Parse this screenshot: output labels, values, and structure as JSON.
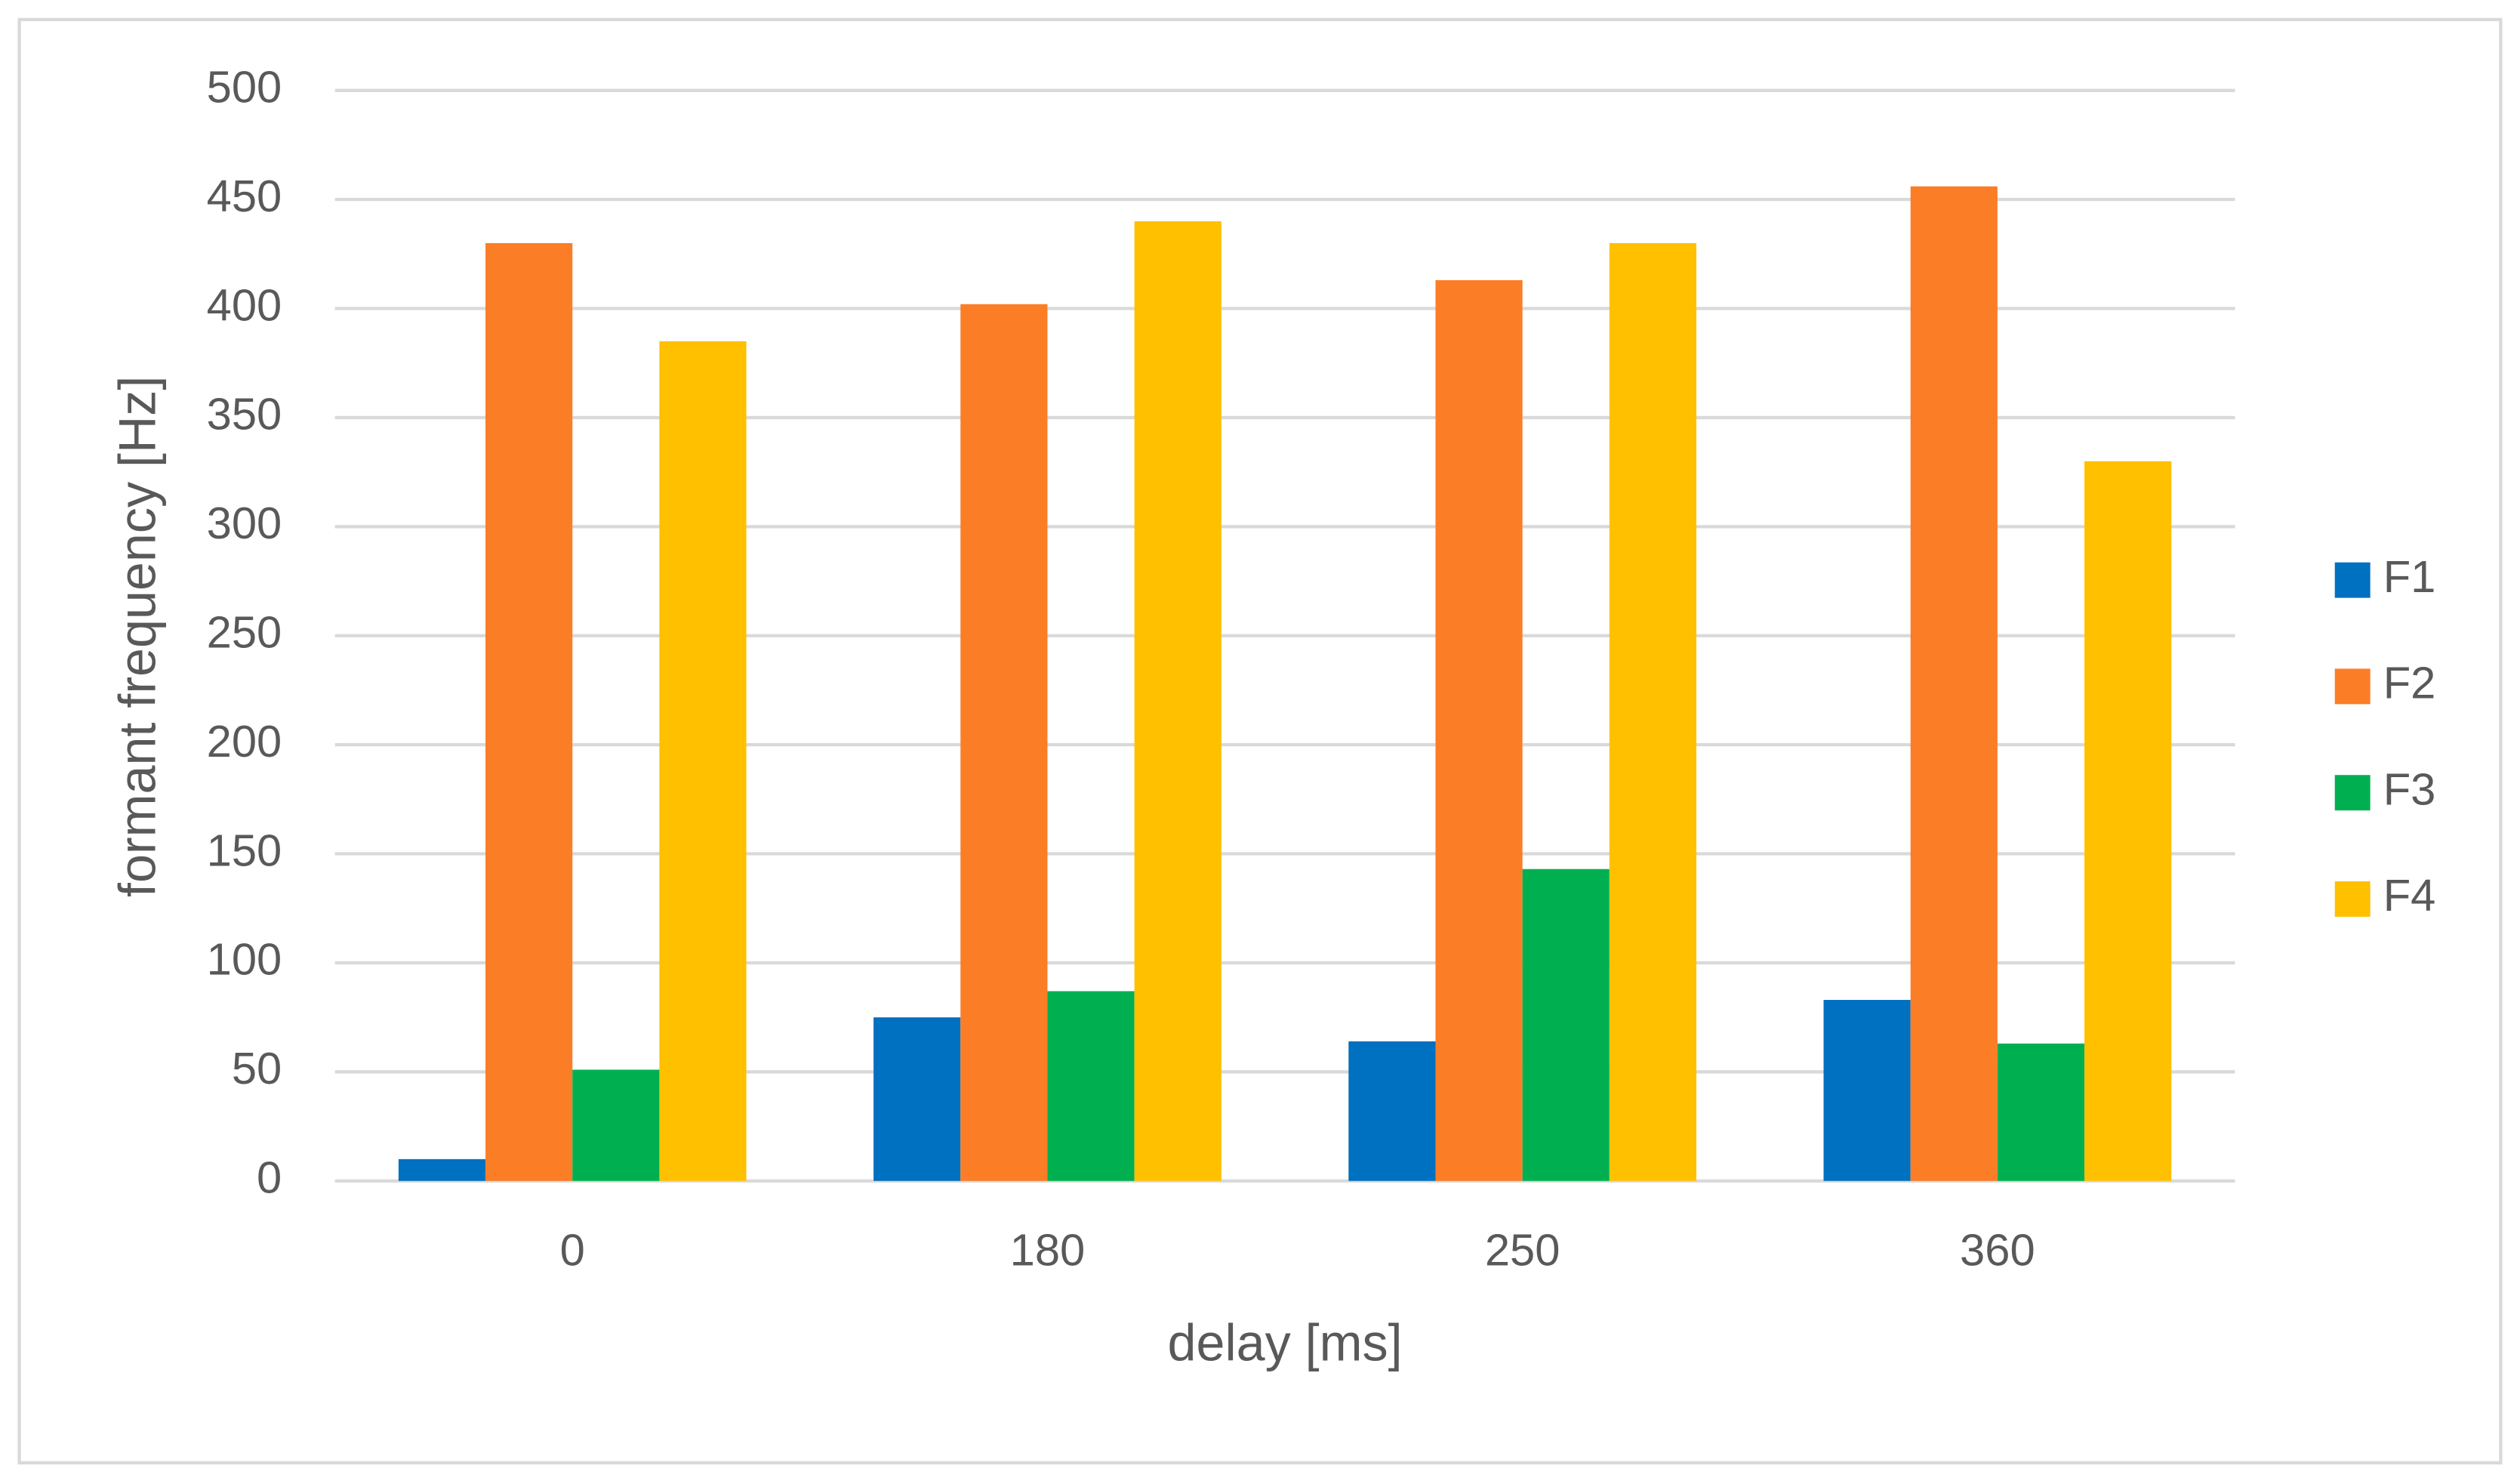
{
  "chart_data": {
    "type": "bar",
    "x_label": "delay [ms]",
    "y_label": "formant frequency [Hz]",
    "categories": [
      "0",
      "180",
      "250",
      "360"
    ],
    "series": [
      {
        "name": "F1",
        "color": "#0070c0",
        "values": [
          10,
          75,
          64,
          83
        ]
      },
      {
        "name": "F2",
        "color": "#fb7d26",
        "values": [
          430,
          402,
          413,
          456
        ]
      },
      {
        "name": "F3",
        "color": "#00b050",
        "values": [
          51,
          87,
          143,
          63
        ]
      },
      {
        "name": "F4",
        "color": "#ffc000",
        "values": [
          385,
          440,
          430,
          330
        ]
      }
    ],
    "ylim": [
      0,
      500
    ],
    "yticks": [
      0,
      50,
      100,
      150,
      200,
      250,
      300,
      350,
      400,
      450,
      500
    ],
    "grid": true,
    "legend": "right"
  }
}
